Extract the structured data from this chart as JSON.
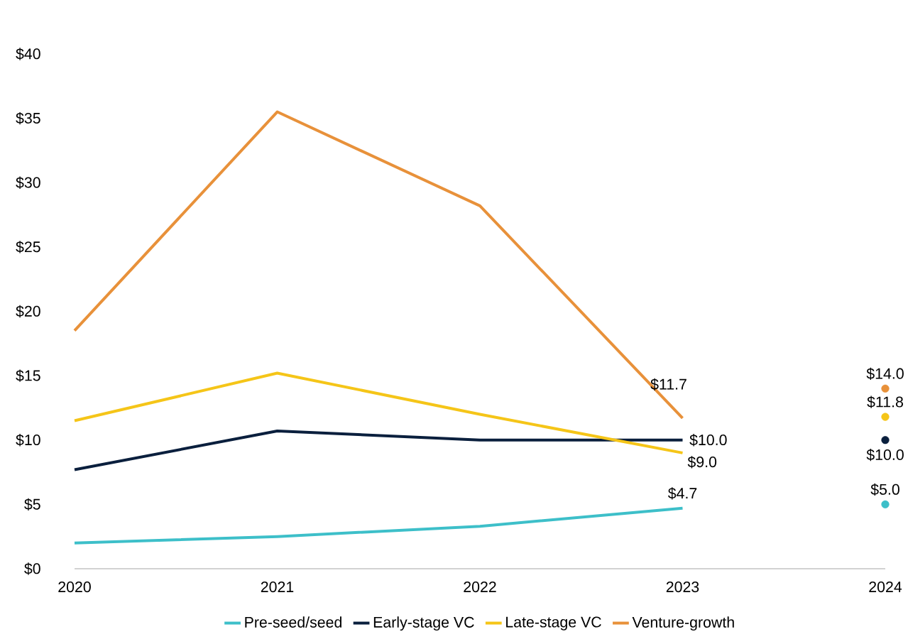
{
  "chart_data": {
    "type": "line",
    "categories": [
      "2020",
      "2021",
      "2022",
      "2023",
      "2024"
    ],
    "ylim": [
      0,
      40
    ],
    "yticks": [
      {
        "value": 0,
        "label": "$0"
      },
      {
        "value": 5,
        "label": "$5"
      },
      {
        "value": 10,
        "label": "$10"
      },
      {
        "value": 15,
        "label": "$15"
      },
      {
        "value": 20,
        "label": "$20"
      },
      {
        "value": 25,
        "label": "$25"
      },
      {
        "value": 30,
        "label": "$30"
      },
      {
        "value": 35,
        "label": "$35"
      },
      {
        "value": 40,
        "label": "$40"
      }
    ],
    "grid": false,
    "legend": "bottom",
    "series": [
      {
        "name": "Pre-seed/seed",
        "color": "#3dbfc9",
        "values": [
          2.0,
          2.5,
          3.3,
          4.7,
          null
        ],
        "value_labels": [
          null,
          null,
          null,
          "$4.7",
          null
        ]
      },
      {
        "name": "Early-stage VC",
        "color": "#0a1f3d",
        "values": [
          7.7,
          10.7,
          10.0,
          10.0,
          null
        ],
        "value_labels": [
          null,
          null,
          null,
          "$10.0",
          null
        ]
      },
      {
        "name": "Late-stage VC",
        "color": "#f5c518",
        "values": [
          11.5,
          15.2,
          12.0,
          9.0,
          null
        ],
        "value_labels": [
          null,
          null,
          null,
          "$9.0",
          null
        ]
      },
      {
        "name": "Venture-growth",
        "color": "#e8913a",
        "values": [
          18.5,
          35.5,
          28.2,
          11.7,
          null
        ],
        "value_labels": [
          null,
          null,
          null,
          "$11.7",
          null
        ]
      },
      {
        "type": "scatter",
        "marker": "circle",
        "color": "#3dbfc9",
        "values": [
          null,
          null,
          null,
          null,
          5.0
        ],
        "value_labels": [
          null,
          null,
          null,
          null,
          "$5.0"
        ]
      },
      {
        "type": "scatter",
        "marker": "circle",
        "color": "#0a1f3d",
        "values": [
          null,
          null,
          null,
          null,
          10.0
        ],
        "value_labels": [
          null,
          null,
          null,
          null,
          "$10.0"
        ]
      },
      {
        "type": "scatter",
        "marker": "circle",
        "color": "#f5c518",
        "values": [
          null,
          null,
          null,
          null,
          11.8
        ],
        "value_labels": [
          null,
          null,
          null,
          null,
          "$11.8"
        ]
      },
      {
        "type": "scatter",
        "marker": "circle",
        "color": "#e8913a",
        "values": [
          null,
          null,
          null,
          null,
          14.0
        ],
        "value_labels": [
          null,
          null,
          null,
          null,
          "$14.0"
        ]
      }
    ]
  }
}
